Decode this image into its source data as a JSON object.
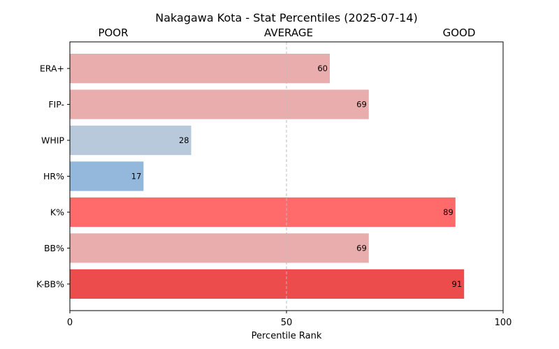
{
  "chart_data": {
    "type": "bar",
    "orientation": "horizontal",
    "title": "Nakagawa Kota - Stat Percentiles (2025-07-14)",
    "band_labels": [
      "POOR",
      "AVERAGE",
      "GOOD"
    ],
    "xlabel": "Percentile Rank",
    "ylabel": "",
    "xlim": [
      0,
      100
    ],
    "x_ticks": [
      0,
      50,
      100
    ],
    "reference_line": 50,
    "grid": false,
    "categories": [
      "ERA+",
      "FIP-",
      "WHIP",
      "HR%",
      "K%",
      "BB%",
      "K-BB%"
    ],
    "values": [
      60,
      69,
      28,
      17,
      89,
      69,
      91
    ],
    "colors": [
      "#eaadad",
      "#eaadad",
      "#b8c9dc",
      "#94b8dc",
      "#ff6b6b",
      "#eaadad",
      "#ec4c4c"
    ]
  }
}
